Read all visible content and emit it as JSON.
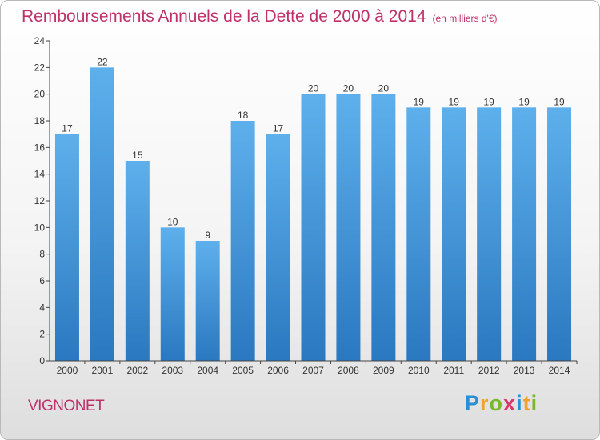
{
  "chart_data": {
    "type": "bar",
    "title": "Remboursements Annuels de la Dette de 2000 à 2014",
    "subtitle": "(en milliers d'€)",
    "categories": [
      "2000",
      "2001",
      "2002",
      "2003",
      "2004",
      "2005",
      "2006",
      "2007",
      "2008",
      "2009",
      "2010",
      "2011",
      "2012",
      "2013",
      "2014"
    ],
    "values": [
      17,
      22,
      15,
      10,
      9,
      18,
      17,
      20,
      20,
      20,
      19,
      19,
      19,
      19,
      19
    ],
    "ylim": [
      0,
      24
    ],
    "yticks": [
      0,
      2,
      4,
      6,
      8,
      10,
      12,
      14,
      16,
      18,
      20,
      22,
      24
    ],
    "grid": false,
    "bar_color": "#4a9fe0",
    "data_labels": true
  },
  "footer": {
    "commune": "VIGNONET",
    "logo": {
      "p": "P",
      "r": "r",
      "o": "o",
      "x": "x",
      "i1": "i",
      "t": "t",
      "i2": "i"
    }
  },
  "colors": {
    "title": "#c0306a",
    "bar": "#4a9fe0",
    "bar_dark": "#2a78c0"
  }
}
